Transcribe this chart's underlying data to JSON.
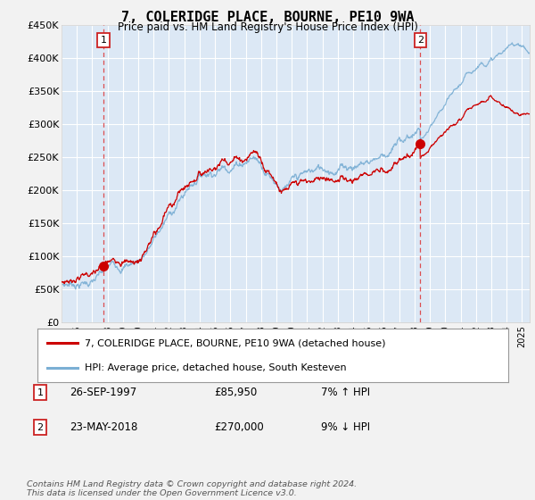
{
  "title": "7, COLERIDGE PLACE, BOURNE, PE10 9WA",
  "subtitle": "Price paid vs. HM Land Registry's House Price Index (HPI)",
  "hpi_color": "#7bafd4",
  "price_color": "#cc0000",
  "marker_color": "#cc0000",
  "plot_bg": "#dce8f5",
  "fig_bg": "#f0f0f0",
  "ylim": [
    0,
    450000
  ],
  "yticks": [
    0,
    50000,
    100000,
    150000,
    200000,
    250000,
    300000,
    350000,
    400000,
    450000
  ],
  "sale1_year": 1997.73,
  "sale1_price": 85950,
  "sale2_year": 2018.38,
  "sale2_price": 270000,
  "legend_line1": "7, COLERIDGE PLACE, BOURNE, PE10 9WA (detached house)",
  "legend_line2": "HPI: Average price, detached house, South Kesteven",
  "annot1_label": "1",
  "annot1_date": "26-SEP-1997",
  "annot1_price": "£85,950",
  "annot1_hpi": "7% ↑ HPI",
  "annot2_label": "2",
  "annot2_date": "23-MAY-2018",
  "annot2_price": "£270,000",
  "annot2_hpi": "9% ↓ HPI",
  "footer": "Contains HM Land Registry data © Crown copyright and database right 2024.\nThis data is licensed under the Open Government Licence v3.0.",
  "xlim_start": 1995.0,
  "xlim_end": 2025.5
}
